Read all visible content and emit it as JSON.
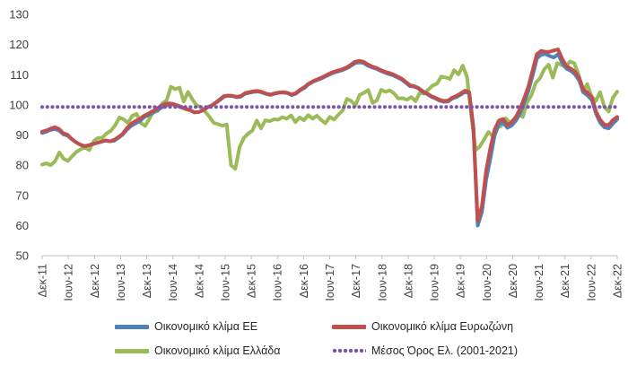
{
  "chart_data": {
    "type": "line",
    "x_tick_labels": [
      "Δεκ-11",
      "Ιουν-12",
      "Δεκ-12",
      "Ιουν-13",
      "Δεκ-13",
      "Ιουν-14",
      "Δεκ-14",
      "Ιουν-15",
      "Δεκ-15",
      "Ιουν-16",
      "Δεκ-16",
      "Ιουν-17",
      "Δεκ-17",
      "Ιουν-18",
      "Δεκ-18",
      "Ιουν-19",
      "Δεκ-19",
      "Ιουν-20",
      "Δεκ-20",
      "Ιουν-21",
      "Δεκ-21",
      "Ιουν-22",
      "Δεκ-22"
    ],
    "ylim": [
      50,
      130
    ],
    "y_ticks": [
      50,
      60,
      70,
      80,
      90,
      100,
      110,
      120,
      130
    ],
    "grid": false,
    "legend_position": "bottom",
    "series": [
      {
        "name": "Οικονομικό κλίμα ΕΕ",
        "color": "#4f81bd",
        "values": [
          90.7,
          91.1,
          91.7,
          92.0,
          91.5,
          90.2,
          89.8,
          88.6,
          87.6,
          86.8,
          86.3,
          86.6,
          87.0,
          87.4,
          87.8,
          88.2,
          87.9,
          88.1,
          89.0,
          90.1,
          91.7,
          93.0,
          93.8,
          94.5,
          95.8,
          96.5,
          97.2,
          98.0,
          98.9,
          99.6,
          100.0,
          100.1,
          99.6,
          99.1,
          98.6,
          98.3,
          97.5,
          97.6,
          98.2,
          99.1,
          99.7,
          100.6,
          101.6,
          102.7,
          103.0,
          102.9,
          102.5,
          102.7,
          103.7,
          104.0,
          104.3,
          104.4,
          104.1,
          103.6,
          103.3,
          103.7,
          104.0,
          104.1,
          103.9,
          103.2,
          103.7,
          104.8,
          105.6,
          106.8,
          107.6,
          108.2,
          108.7,
          109.4,
          110.1,
          110.7,
          111.1,
          111.5,
          112.1,
          112.9,
          113.8,
          114.1,
          113.9,
          113.0,
          112.4,
          112.0,
          111.3,
          110.7,
          110.2,
          109.8,
          109.1,
          108.4,
          107.3,
          106.2,
          106.0,
          105.4,
          104.3,
          103.6,
          102.7,
          102.1,
          101.4,
          101.0,
          101.1,
          102.1,
          102.6,
          103.4,
          104.3,
          103.9,
          91.8,
          60.0,
          64.5,
          75.2,
          82.2,
          89.9,
          93.5,
          94.2,
          92.4,
          93.1,
          94.7,
          97.1,
          100.8,
          104.6,
          109.8,
          115.4,
          116.6,
          116.9,
          116.2,
          115.7,
          116.8,
          113.9,
          112.0,
          111.3,
          110.1,
          108.1,
          104.2,
          103.1,
          101.6,
          97.0,
          94.0,
          92.5,
          92.2,
          93.8,
          95.2
        ],
        "draw_order": 2
      },
      {
        "name": "Οικονομικό κλίμα Ευρωζώνη",
        "color": "#c0504d",
        "values": [
          91.1,
          91.5,
          92.1,
          92.6,
          92.0,
          90.6,
          90.1,
          88.7,
          87.6,
          86.8,
          86.3,
          86.6,
          87.0,
          87.4,
          87.8,
          88.2,
          87.9,
          88.4,
          89.3,
          90.3,
          92.2,
          93.6,
          94.6,
          95.2,
          96.3,
          97.0,
          97.8,
          98.6,
          99.6,
          100.3,
          100.5,
          100.3,
          99.8,
          99.3,
          98.6,
          98.2,
          97.5,
          97.6,
          98.2,
          99.1,
          99.7,
          100.7,
          101.8,
          102.9,
          103.1,
          103.0,
          102.7,
          102.9,
          103.9,
          104.2,
          104.5,
          104.6,
          104.3,
          103.7,
          103.4,
          103.8,
          104.1,
          104.2,
          104.0,
          103.4,
          103.9,
          105.0,
          105.9,
          107.0,
          107.8,
          108.4,
          109.0,
          109.7,
          110.4,
          111.0,
          111.4,
          111.8,
          112.4,
          113.3,
          114.3,
          114.6,
          114.3,
          113.4,
          112.7,
          112.3,
          111.6,
          111.0,
          110.6,
          110.1,
          109.4,
          108.7,
          107.6,
          106.5,
          106.2,
          105.6,
          104.5,
          103.8,
          102.9,
          102.3,
          101.7,
          101.3,
          101.4,
          102.4,
          103.0,
          103.8,
          104.7,
          104.2,
          92.4,
          61.5,
          66.5,
          78.2,
          85.7,
          91.8,
          94.8,
          95.3,
          93.3,
          94.1,
          95.9,
          98.6,
          102.2,
          106.1,
          111.5,
          116.8,
          117.9,
          117.6,
          117.6,
          118.0,
          118.4,
          115.2,
          112.8,
          112.0,
          111.0,
          109.0,
          105.0,
          104.0,
          102.6,
          97.7,
          95.0,
          93.4,
          93.3,
          95.0,
          96.0
        ],
        "draw_order": 3
      },
      {
        "name": "Οικονομικό κλίμα Ελλάδα",
        "color": "#9bbb59",
        "values": [
          80.2,
          80.6,
          80.0,
          81.3,
          84.2,
          82.1,
          81.4,
          83.0,
          84.4,
          85.3,
          85.9,
          85.0,
          88.0,
          89.0,
          89.1,
          90.5,
          91.4,
          93.2,
          95.8,
          95.2,
          94.0,
          96.4,
          97.0,
          94.0,
          93.0,
          95.4,
          98.0,
          98.0,
          100.5,
          101.5,
          106.0,
          105.2,
          105.7,
          101.1,
          104.3,
          101.8,
          99.8,
          99.3,
          97.7,
          96.0,
          94.0,
          93.6,
          93.1,
          93.5,
          80.0,
          78.8,
          86.0,
          89.0,
          90.5,
          91.5,
          94.8,
          92.2,
          94.9,
          94.6,
          95.2,
          95.1,
          95.9,
          95.4,
          96.5,
          94.3,
          95.8,
          94.9,
          96.6,
          95.4,
          96.4,
          95.0,
          93.9,
          96.0,
          95.1,
          96.7,
          98.1,
          102.0,
          101.3,
          99.8,
          103.3,
          104.0,
          104.9,
          100.6,
          101.5,
          105.0,
          104.3,
          104.8,
          103.8,
          102.1,
          102.2,
          101.7,
          102.6,
          101.2,
          104.0,
          103.7,
          105.1,
          106.4,
          107.0,
          109.4,
          109.1,
          108.6,
          111.5,
          110.1,
          113.0,
          109.3,
          96.3,
          85.0,
          86.2,
          88.6,
          91.0,
          89.6,
          92.5,
          93.0,
          95.5,
          94.0,
          95.4,
          97.0,
          96.0,
          100.8,
          103.2,
          107.3,
          108.8,
          111.8,
          113.3,
          109.0,
          113.8,
          113.2,
          112.5,
          114.4,
          113.8,
          110.0,
          104.2,
          106.9,
          102.8,
          101.3,
          104.2,
          99.3,
          97.8,
          102.4,
          104.4
        ],
        "draw_order": 1
      },
      {
        "name": "Μέσος Όρος Ελ. (2001-2021)",
        "color": "#7a55a8",
        "style": "dotted",
        "values": [
          99.3
        ],
        "constant": true,
        "draw_order": 4
      }
    ]
  },
  "legend": {
    "eu": "Οικονομικό κλίμα ΕΕ",
    "ez": "Οικονομικό κλίμα Ευρωζώνη",
    "gr": "Οικονομικό κλίμα Ελλάδα",
    "avg": "Μέσος Όρος Ελ. (2001-2021)"
  }
}
